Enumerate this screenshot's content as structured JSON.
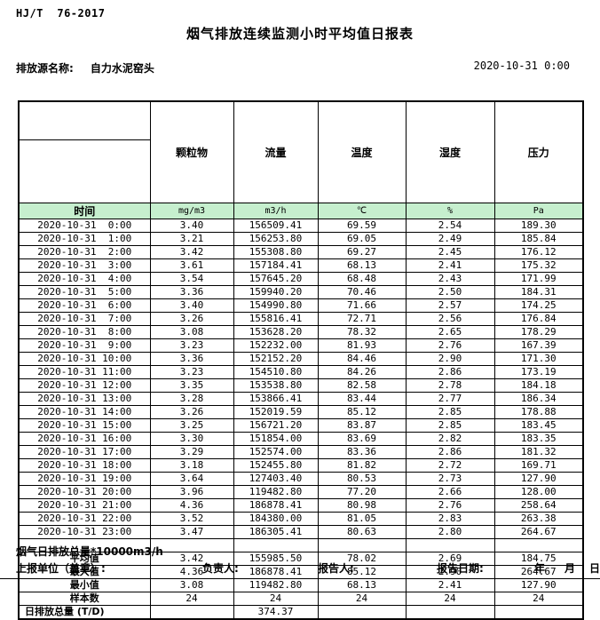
{
  "meta": {
    "standard": "HJ/T  76-2017",
    "title": "烟气排放连续监测小时平均值日报表",
    "source_label": "排放源名称:",
    "source_name": "自力水泥窑头",
    "report_time": "2020-10-31 0:00"
  },
  "table": {
    "time_header": "时间",
    "columns": [
      "颗粒物",
      "流量",
      "温度",
      "湿度",
      "压力"
    ],
    "units": [
      "mg/m3",
      "m3/h",
      "℃",
      "%",
      "Pa"
    ],
    "rows": [
      {
        "time": "2020-10-31  0:00",
        "values": [
          "3.40",
          "156509.41",
          "69.59",
          "2.54",
          "189.30"
        ]
      },
      {
        "time": "2020-10-31  1:00",
        "values": [
          "3.21",
          "156253.80",
          "69.05",
          "2.49",
          "185.84"
        ]
      },
      {
        "time": "2020-10-31  2:00",
        "values": [
          "3.42",
          "155308.80",
          "69.27",
          "2.45",
          "176.12"
        ]
      },
      {
        "time": "2020-10-31  3:00",
        "values": [
          "3.61",
          "157184.41",
          "68.13",
          "2.41",
          "175.32"
        ]
      },
      {
        "time": "2020-10-31  4:00",
        "values": [
          "3.54",
          "157645.20",
          "68.48",
          "2.43",
          "171.99"
        ]
      },
      {
        "time": "2020-10-31  5:00",
        "values": [
          "3.36",
          "159940.20",
          "70.46",
          "2.50",
          "184.31"
        ]
      },
      {
        "time": "2020-10-31  6:00",
        "values": [
          "3.40",
          "154990.80",
          "71.66",
          "2.57",
          "174.25"
        ]
      },
      {
        "time": "2020-10-31  7:00",
        "values": [
          "3.26",
          "155816.41",
          "72.71",
          "2.56",
          "176.84"
        ]
      },
      {
        "time": "2020-10-31  8:00",
        "values": [
          "3.08",
          "153628.20",
          "78.32",
          "2.65",
          "178.29"
        ]
      },
      {
        "time": "2020-10-31  9:00",
        "values": [
          "3.23",
          "152232.00",
          "81.93",
          "2.76",
          "167.39"
        ]
      },
      {
        "time": "2020-10-31 10:00",
        "values": [
          "3.36",
          "152152.20",
          "84.46",
          "2.90",
          "171.30"
        ]
      },
      {
        "time": "2020-10-31 11:00",
        "values": [
          "3.23",
          "154510.80",
          "84.26",
          "2.86",
          "173.19"
        ]
      },
      {
        "time": "2020-10-31 12:00",
        "values": [
          "3.35",
          "153538.80",
          "82.58",
          "2.78",
          "184.18"
        ]
      },
      {
        "time": "2020-10-31 13:00",
        "values": [
          "3.28",
          "153866.41",
          "83.44",
          "2.77",
          "186.34"
        ]
      },
      {
        "time": "2020-10-31 14:00",
        "values": [
          "3.26",
          "152019.59",
          "85.12",
          "2.85",
          "178.88"
        ]
      },
      {
        "time": "2020-10-31 15:00",
        "values": [
          "3.25",
          "156721.20",
          "83.87",
          "2.85",
          "183.45"
        ]
      },
      {
        "time": "2020-10-31 16:00",
        "values": [
          "3.30",
          "151854.00",
          "83.69",
          "2.82",
          "183.35"
        ]
      },
      {
        "time": "2020-10-31 17:00",
        "values": [
          "3.29",
          "152574.00",
          "83.36",
          "2.86",
          "181.32"
        ]
      },
      {
        "time": "2020-10-31 18:00",
        "values": [
          "3.18",
          "152455.80",
          "81.82",
          "2.72",
          "169.71"
        ]
      },
      {
        "time": "2020-10-31 19:00",
        "values": [
          "3.64",
          "127403.40",
          "80.53",
          "2.73",
          "127.90"
        ]
      },
      {
        "time": "2020-10-31 20:00",
        "values": [
          "3.96",
          "119482.80",
          "77.20",
          "2.66",
          "128.00"
        ]
      },
      {
        "time": "2020-10-31 21:00",
        "values": [
          "4.36",
          "186878.41",
          "80.98",
          "2.76",
          "258.64"
        ]
      },
      {
        "time": "2020-10-31 22:00",
        "values": [
          "3.52",
          "184380.00",
          "81.05",
          "2.83",
          "263.38"
        ]
      },
      {
        "time": "2020-10-31 23:00",
        "values": [
          "3.47",
          "186305.41",
          "80.63",
          "2.80",
          "264.67"
        ]
      }
    ],
    "summary": [
      {
        "label": "平均值",
        "values": [
          "3.42",
          "155985.50",
          "78.02",
          "2.69",
          "184.75"
        ]
      },
      {
        "label": "最大值",
        "values": [
          "4.36",
          "186878.41",
          "85.12",
          "2.90",
          "264.67"
        ]
      },
      {
        "label": "最小值",
        "values": [
          "3.08",
          "119482.80",
          "68.13",
          "2.41",
          "127.90"
        ]
      },
      {
        "label": "样本数",
        "values": [
          "24",
          "24",
          "24",
          "24",
          "24"
        ]
      },
      {
        "label": "日排放总量 (T/D)",
        "values": [
          "",
          "374.37",
          "",
          "",
          ""
        ]
      }
    ]
  },
  "footer": {
    "note": "烟气日排放总量*10000m3/h",
    "report_unit": "上报单位（盖章）:",
    "responsible": "负责人:",
    "reporter": "报告人:",
    "report_date_label": "报告日期:",
    "year": "年",
    "month": "月",
    "day": "日"
  },
  "colors": {
    "header_green": "#c6efce",
    "border": "#000000"
  }
}
